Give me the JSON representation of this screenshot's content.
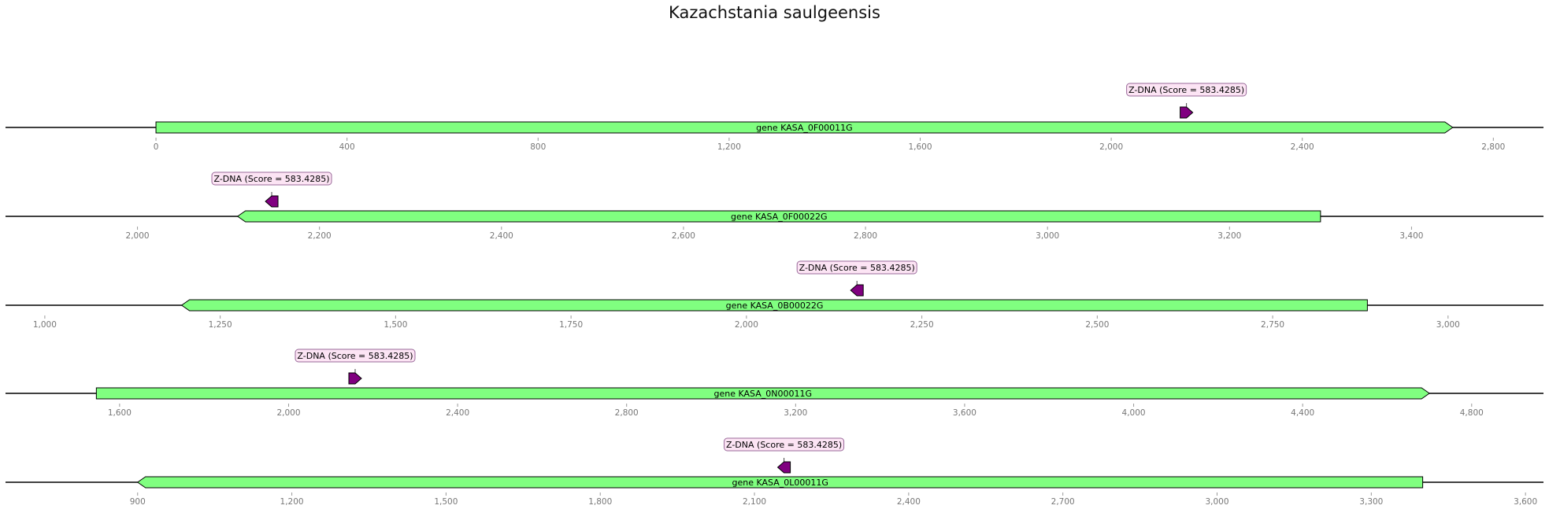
{
  "title": "Kazachstania saulgeensis",
  "colors": {
    "gene_fill": "#80ff80",
    "feature_fill": "#800080",
    "label_box_fill": "#fce4f4",
    "label_box_stroke": "#9a6a9a",
    "axis": "#000000",
    "tick_text": "#777777"
  },
  "tracks": [
    {
      "view": [
        -315,
        2905
      ],
      "ticks": [
        0,
        400,
        800,
        1200,
        1600,
        2000,
        2400,
        2800
      ],
      "tick_labels": [
        "0",
        "400",
        "800",
        "1,200",
        "1,600",
        "2,000",
        "2,400",
        "2,800"
      ],
      "gene": {
        "label": "gene KASA_0F00011G",
        "start": 0,
        "end": 2715,
        "strand": 1
      },
      "feature": {
        "label": "Z-DNA (Score = 583.4285)",
        "start": 2150,
        "end": 2165,
        "strand": 1
      }
    },
    {
      "view": [
        1855,
        3545
      ],
      "ticks": [
        2000,
        2200,
        2400,
        2600,
        2800,
        3000,
        3200,
        3400
      ],
      "tick_labels": [
        "2,000",
        "2,200",
        "2,400",
        "2,600",
        "2,800",
        "3,000",
        "3,200",
        "3,400"
      ],
      "gene": {
        "label": "gene KASA_0F00022G",
        "start": 2110,
        "end": 3300,
        "strand": -1
      },
      "feature": {
        "label": "Z-DNA (Score = 583.4285)",
        "start": 2140,
        "end": 2155,
        "strand": -1
      }
    },
    {
      "view": [
        944,
        3136
      ],
      "ticks": [
        1000,
        1250,
        1500,
        1750,
        2000,
        2250,
        2500,
        2750,
        3000
      ],
      "tick_labels": [
        "1,000",
        "1,250",
        "1,500",
        "1,750",
        "2,000",
        "2,250",
        "2,500",
        "2,750",
        "3,000"
      ],
      "gene": {
        "label": "gene KASA_0B00022G",
        "start": 1195,
        "end": 2885,
        "strand": -1
      },
      "feature": {
        "label": "Z-DNA (Score = 583.4285)",
        "start": 2150,
        "end": 2165,
        "strand": -1
      }
    },
    {
      "view": [
        1330,
        4970
      ],
      "ticks": [
        1600,
        2000,
        2400,
        2800,
        3200,
        3600,
        4000,
        4400,
        4800
      ],
      "tick_labels": [
        "1,600",
        "2,000",
        "2,400",
        "2,800",
        "3,200",
        "3,600",
        "4,000",
        "4,400",
        "4,800"
      ],
      "gene": {
        "label": "gene KASA_0N00011G",
        "start": 1545,
        "end": 4700,
        "strand": 1
      },
      "feature": {
        "label": "Z-DNA (Score = 583.4285)",
        "start": 2150,
        "end": 2165,
        "strand": 1
      }
    },
    {
      "view": [
        643,
        3635
      ],
      "ticks": [
        900,
        1200,
        1500,
        1800,
        2100,
        2400,
        2700,
        3000,
        3300,
        3600
      ],
      "tick_labels": [
        "900",
        "1,200",
        "1,500",
        "1,800",
        "2,100",
        "2,400",
        "2,700",
        "3,000",
        "3,300",
        "3,600"
      ],
      "gene": {
        "label": "gene KASA_0L00011G",
        "start": 900,
        "end": 3400,
        "strand": -1
      },
      "feature": {
        "label": "Z-DNA (Score = 583.4285)",
        "start": 2150,
        "end": 2165,
        "strand": -1
      }
    }
  ]
}
